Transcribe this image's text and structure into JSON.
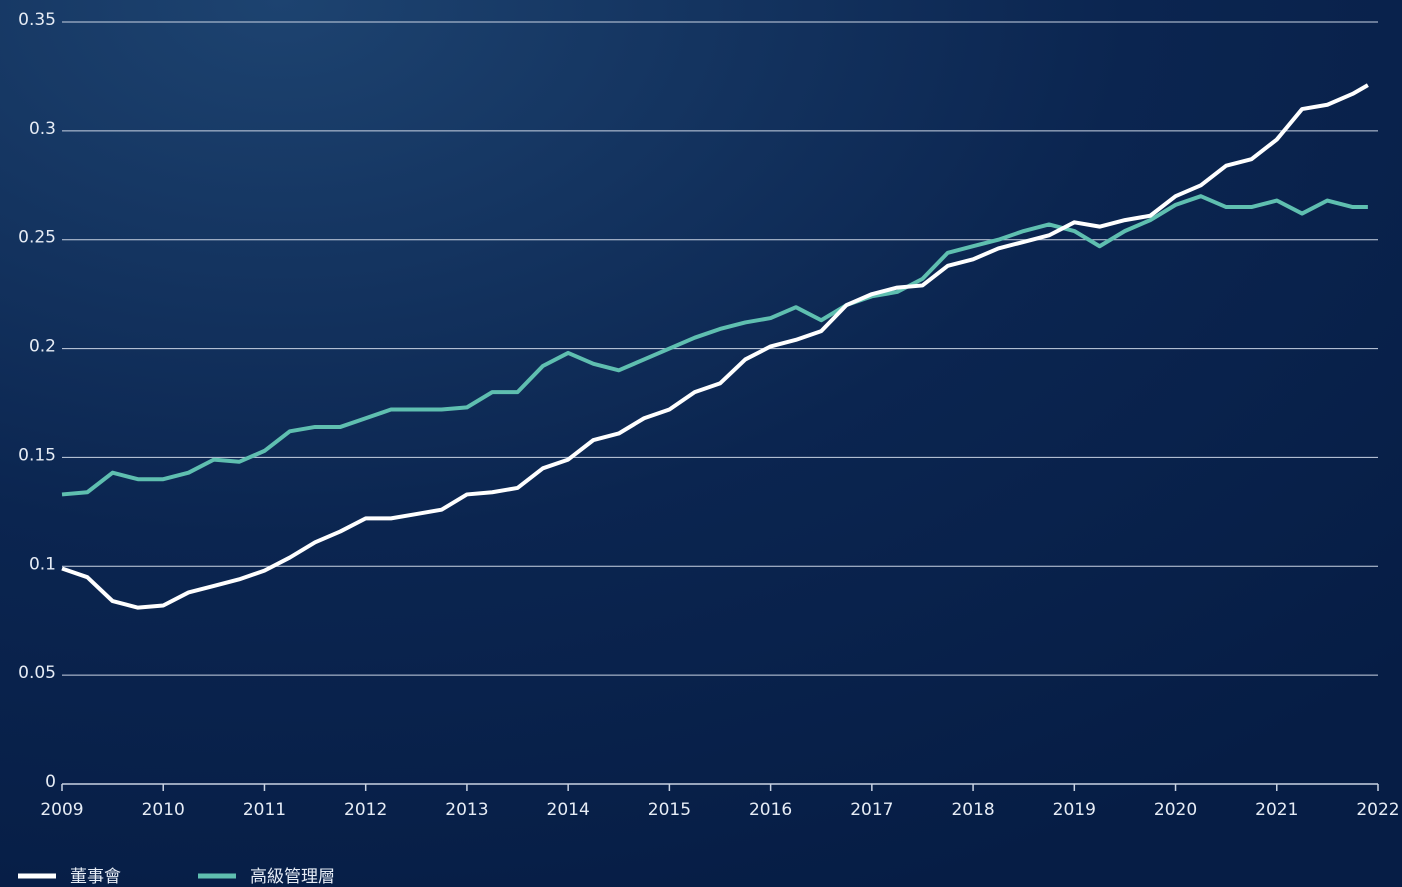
{
  "chart_data": {
    "type": "line",
    "x": [
      2009,
      2009.25,
      2009.5,
      2009.75,
      2010,
      2010.25,
      2010.5,
      2010.75,
      2011,
      2011.25,
      2011.5,
      2011.75,
      2012,
      2012.25,
      2012.5,
      2012.75,
      2013,
      2013.25,
      2013.5,
      2013.75,
      2014,
      2014.25,
      2014.5,
      2014.75,
      2015,
      2015.25,
      2015.5,
      2015.75,
      2016,
      2016.25,
      2016.5,
      2016.75,
      2017,
      2017.25,
      2017.5,
      2017.75,
      2018,
      2018.25,
      2018.5,
      2018.75,
      2019,
      2019.25,
      2019.5,
      2019.75,
      2020,
      2020.25,
      2020.5,
      2020.75,
      2021,
      2021.25,
      2021.5,
      2021.75,
      2021.9
    ],
    "series": [
      {
        "name": "董事會",
        "color": "#ffffff",
        "values": [
          0.099,
          0.095,
          0.084,
          0.081,
          0.082,
          0.088,
          0.091,
          0.094,
          0.098,
          0.104,
          0.111,
          0.116,
          0.122,
          0.122,
          0.124,
          0.126,
          0.133,
          0.134,
          0.136,
          0.145,
          0.149,
          0.158,
          0.161,
          0.168,
          0.172,
          0.18,
          0.184,
          0.195,
          0.201,
          0.204,
          0.208,
          0.22,
          0.225,
          0.228,
          0.229,
          0.238,
          0.241,
          0.246,
          0.249,
          0.252,
          0.258,
          0.256,
          0.259,
          0.261,
          0.27,
          0.275,
          0.284,
          0.287,
          0.296,
          0.31,
          0.312,
          0.317,
          0.321
        ]
      },
      {
        "name": "高級管理層",
        "color": "#5fbfb0",
        "values": [
          0.133,
          0.134,
          0.143,
          0.14,
          0.14,
          0.143,
          0.149,
          0.148,
          0.153,
          0.162,
          0.164,
          0.164,
          0.168,
          0.172,
          0.172,
          0.172,
          0.173,
          0.18,
          0.18,
          0.192,
          0.198,
          0.193,
          0.19,
          0.195,
          0.2,
          0.205,
          0.209,
          0.212,
          0.214,
          0.219,
          0.213,
          0.22,
          0.224,
          0.226,
          0.232,
          0.244,
          0.247,
          0.25,
          0.254,
          0.257,
          0.254,
          0.247,
          0.254,
          0.259,
          0.266,
          0.27,
          0.265,
          0.265,
          0.268,
          0.262,
          0.268,
          0.265,
          0.265
        ]
      }
    ],
    "xlim": [
      2009,
      2022
    ],
    "xticks": [
      2009,
      2010,
      2011,
      2012,
      2013,
      2014,
      2015,
      2016,
      2017,
      2018,
      2019,
      2020,
      2021,
      2022
    ],
    "ylim": [
      0,
      0.35
    ],
    "yticks": [
      0,
      0.05,
      0.1,
      0.15,
      0.2,
      0.25,
      0.3,
      0.35
    ],
    "grid": true,
    "legend": "bottom"
  }
}
